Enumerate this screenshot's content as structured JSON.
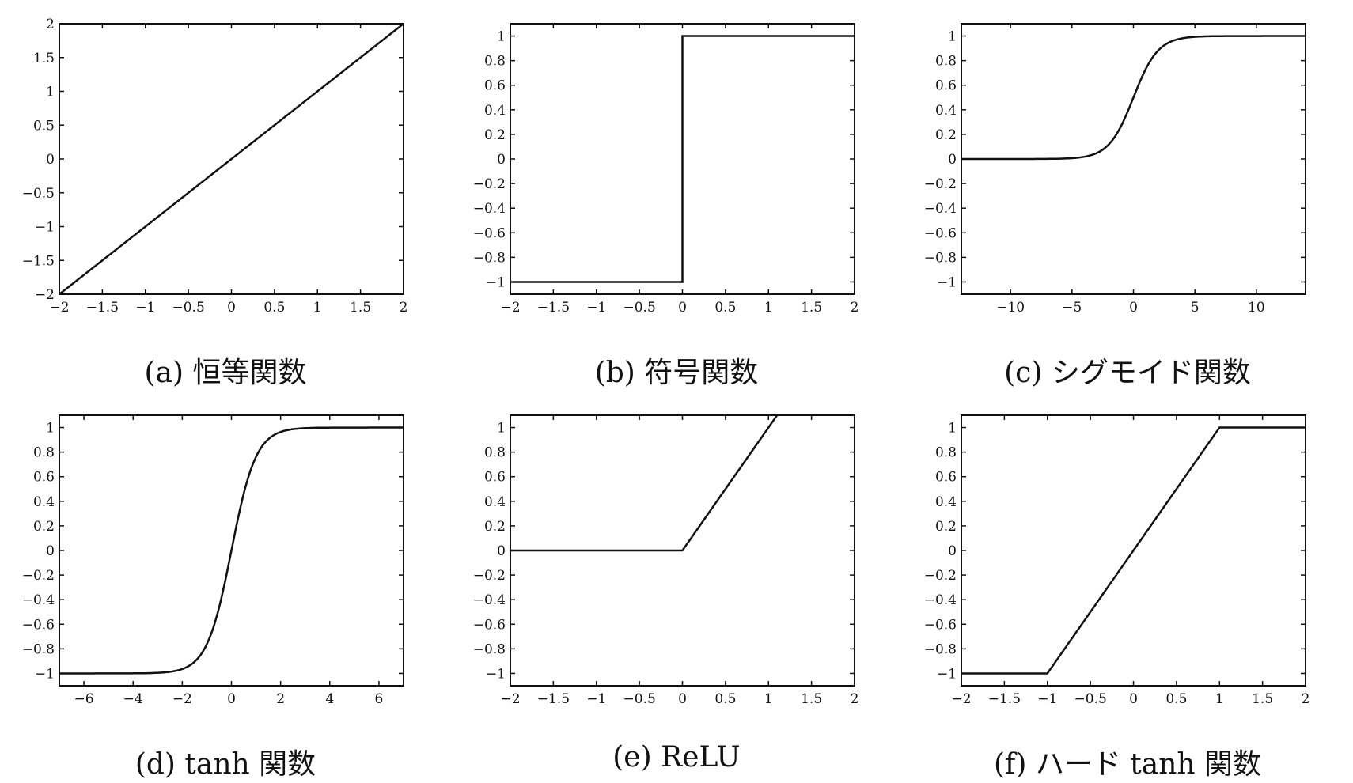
{
  "chart_data": [
    {
      "type": "line",
      "caption": "(a) 恒等関数",
      "function": "identity",
      "xlim": [
        -2,
        2
      ],
      "ylim": [
        -2,
        2
      ],
      "xticks": [
        -2,
        -1.5,
        -1,
        -0.5,
        0,
        0.5,
        1,
        1.5,
        2
      ],
      "yticks": [
        -2,
        -1.5,
        -1,
        -0.5,
        0,
        0.5,
        1,
        1.5,
        2
      ],
      "series": [
        {
          "x": [
            -2,
            2
          ],
          "y": [
            -2,
            2
          ]
        }
      ]
    },
    {
      "type": "line",
      "caption": "(b) 符号関数",
      "function": "sign",
      "xlim": [
        -2,
        2
      ],
      "ylim": [
        -1.1,
        1.1
      ],
      "xticks": [
        -2,
        -1.5,
        -1,
        -0.5,
        0,
        0.5,
        1,
        1.5,
        2
      ],
      "yticks": [
        -1,
        -0.8,
        -0.6,
        -0.4,
        -0.2,
        0,
        0.2,
        0.4,
        0.6,
        0.8,
        1
      ],
      "series": [
        {
          "x": [
            -2,
            0,
            0,
            2
          ],
          "y": [
            -1,
            -1,
            1,
            1
          ]
        }
      ]
    },
    {
      "type": "line",
      "caption": "(c) シグモイド関数",
      "function": "sigmoid",
      "xlim": [
        -14,
        14
      ],
      "ylim": [
        -1.1,
        1.1
      ],
      "xticks": [
        -10,
        -5,
        0,
        5,
        10
      ],
      "yticks": [
        -1,
        -0.8,
        -0.6,
        -0.4,
        -0.2,
        0,
        0.2,
        0.4,
        0.6,
        0.8,
        1
      ],
      "series": [
        {
          "x": [
            -14,
            -6,
            -4,
            -2,
            -1,
            0,
            1,
            2,
            4,
            6,
            14
          ],
          "y": [
            0,
            0.002,
            0.018,
            0.119,
            0.269,
            0.5,
            0.731,
            0.881,
            0.982,
            0.998,
            1
          ]
        }
      ]
    },
    {
      "type": "line",
      "caption": "(d) tanh 関数",
      "function": "tanh",
      "xlim": [
        -7,
        7
      ],
      "ylim": [
        -1.1,
        1.1
      ],
      "xticks": [
        -6,
        -4,
        -2,
        0,
        2,
        4,
        6
      ],
      "yticks": [
        -1,
        -0.8,
        -0.6,
        -0.4,
        -0.2,
        0,
        0.2,
        0.4,
        0.6,
        0.8,
        1
      ],
      "series": [
        {
          "x": [
            -7,
            -3,
            -2,
            -1,
            -0.5,
            0,
            0.5,
            1,
            2,
            3,
            7
          ],
          "y": [
            -1,
            -0.995,
            -0.964,
            -0.762,
            -0.462,
            0,
            0.462,
            0.762,
            0.964,
            0.995,
            1
          ]
        }
      ]
    },
    {
      "type": "line",
      "caption": "(e) ReLU",
      "function": "relu",
      "xlim": [
        -2,
        2
      ],
      "ylim": [
        -1.1,
        1.1
      ],
      "xticks": [
        -2,
        -1.5,
        -1,
        -0.5,
        0,
        0.5,
        1,
        1.5,
        2
      ],
      "yticks": [
        -1,
        -0.8,
        -0.6,
        -0.4,
        -0.2,
        0,
        0.2,
        0.4,
        0.6,
        0.8,
        1
      ],
      "series": [
        {
          "x": [
            -2,
            0,
            2
          ],
          "y": [
            0,
            0,
            2
          ]
        }
      ]
    },
    {
      "type": "line",
      "caption": "(f) ハード tanh 関数",
      "function": "hardtanh",
      "xlim": [
        -2,
        2
      ],
      "ylim": [
        -1.1,
        1.1
      ],
      "xticks": [
        -2,
        -1.5,
        -1,
        -0.5,
        0,
        0.5,
        1,
        1.5,
        2
      ],
      "yticks": [
        -1,
        -0.8,
        -0.6,
        -0.4,
        -0.2,
        0,
        0.2,
        0.4,
        0.6,
        0.8,
        1
      ],
      "series": [
        {
          "x": [
            -2,
            -1,
            1,
            2
          ],
          "y": [
            -1,
            -1,
            1,
            1
          ]
        }
      ]
    }
  ]
}
